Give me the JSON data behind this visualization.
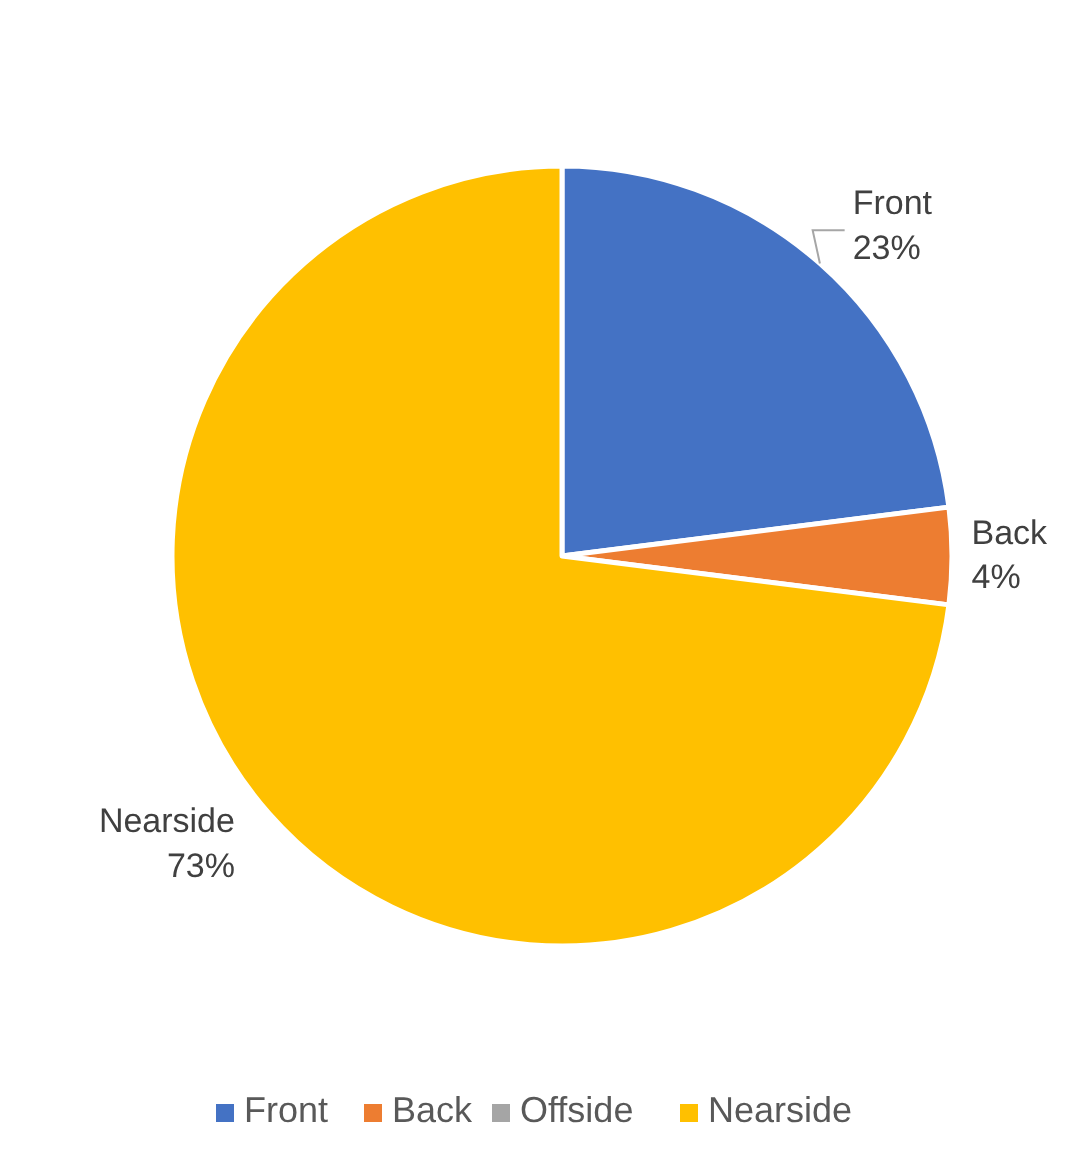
{
  "chart_data": {
    "type": "pie",
    "categories": [
      "Front",
      "Back",
      "Offside",
      "Nearside"
    ],
    "values": [
      23,
      4,
      0,
      73
    ],
    "colors": [
      "#4472c4",
      "#ed7d31",
      "#a5a5a5",
      "#ffc000"
    ],
    "value_labels": [
      "23%",
      "4%",
      null,
      "73%"
    ],
    "legend": "bottom"
  }
}
